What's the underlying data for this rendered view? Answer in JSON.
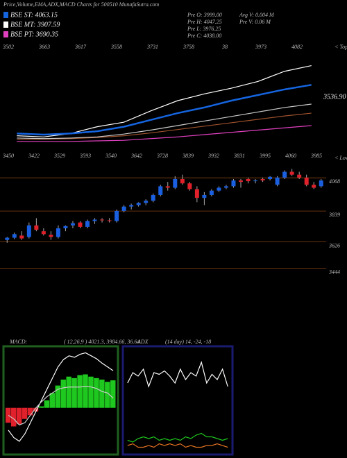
{
  "header": {
    "title": "Price,Volume,EMA,ADX,MACD Charts for 500510 MunafaSutra.com",
    "legend": [
      {
        "text": "BSE ST: 4063.15",
        "color": "#1565e0"
      },
      {
        "text": "BSE MT: 3907.59",
        "color": "#ffffff"
      },
      {
        "text": "BSE PT: 3690.35",
        "color": "#e040c0"
      }
    ],
    "info": [
      "Pre  O: 3999.00",
      "Pre  H: 4047.25",
      "Pre  L: 3976.25",
      "Pre  C: 4038.00",
      "Avg V: 0.004  M",
      "Pre  V: 0.06  M"
    ]
  },
  "chart_data": [
    {
      "type": "line",
      "top_labels": [
        "3502",
        "3663",
        "3617",
        "3558",
        "3731",
        "3758",
        "38",
        "3973",
        "4082"
      ],
      "low_labels": [
        "3450",
        "3422",
        "3529",
        "3593",
        "3540",
        "3642",
        "3728",
        "3839",
        "3932",
        "3831",
        "3995",
        "4060",
        "3985"
      ],
      "tops_label": "< Tops",
      "lows_label": "< Lows",
      "annotation": "3536.90",
      "categories": [
        null,
        null,
        null,
        null,
        null,
        null,
        null,
        null,
        null,
        null,
        null,
        null
      ],
      "ylim": [
        3300,
        4300
      ],
      "series": [
        {
          "color": "#ffffff",
          "values": [
            3480,
            3470,
            3500,
            3560,
            3600,
            3700,
            3790,
            3850,
            3900,
            3960,
            4050,
            4100
          ]
        },
        {
          "color": "#a0522d",
          "values": [
            3450,
            3450,
            3455,
            3465,
            3480,
            3505,
            3535,
            3565,
            3595,
            3625,
            3655,
            3680
          ]
        },
        {
          "color": "#e040c0",
          "values": [
            3430,
            3430,
            3430,
            3435,
            3440,
            3455,
            3470,
            3490,
            3510,
            3530,
            3550,
            3570
          ]
        },
        {
          "color": "#cccccc",
          "values": [
            3460,
            3455,
            3460,
            3470,
            3495,
            3530,
            3570,
            3610,
            3650,
            3690,
            3730,
            3760
          ]
        },
        {
          "color": "#1565e0",
          "values": [
            3500,
            3490,
            3500,
            3520,
            3560,
            3620,
            3680,
            3730,
            3790,
            3840,
            3890,
            3930
          ]
        }
      ]
    },
    {
      "type": "candlestick",
      "up_color": "#1a5fe0",
      "down_color": "#e0202a",
      "grid_color": "#8b4513",
      "ylim": [
        3380,
        4170
      ],
      "yticks": [
        4068,
        3839,
        3626,
        3444
      ],
      "open": [
        3640,
        3655,
        3670,
        3660,
        3740,
        3700,
        3675,
        3660,
        3720,
        3740,
        3760,
        3730,
        3770,
        3780,
        3775,
        3770,
        3840,
        3870,
        3880,
        3895,
        3910,
        3950,
        4010,
        4000,
        4060,
        4030,
        3990,
        3930,
        3950,
        3980,
        4000,
        4010,
        4050,
        4060,
        4045,
        4060,
        4060,
        4020,
        4070,
        4110,
        4090,
        4070,
        4020,
        4010
      ],
      "high": [
        3660,
        3690,
        3700,
        3760,
        3790,
        3720,
        3700,
        3740,
        3740,
        3770,
        3770,
        3780,
        3790,
        3790,
        3790,
        3850,
        3880,
        3890,
        3900,
        3920,
        3960,
        4020,
        4040,
        4080,
        4090,
        4040,
        4010,
        3970,
        3990,
        4010,
        4020,
        4060,
        4060,
        4070,
        4060,
        4070,
        4080,
        4080,
        4120,
        4130,
        4110,
        4090,
        4040,
        4060
      ],
      "low": [
        3620,
        3645,
        3640,
        3650,
        3700,
        3670,
        3640,
        3650,
        3700,
        3720,
        3720,
        3720,
        3750,
        3760,
        3760,
        3760,
        3830,
        3850,
        3870,
        3880,
        3900,
        3940,
        3980,
        3990,
        4020,
        3980,
        3900,
        3880,
        3940,
        3970,
        3990,
        4000,
        4000,
        4030,
        4030,
        4040,
        4050,
        4010,
        4060,
        4080,
        4060,
        4010,
        3990,
        4000
      ],
      "close": [
        3655,
        3680,
        3650,
        3740,
        3710,
        3680,
        3660,
        3720,
        3735,
        3755,
        3730,
        3770,
        3780,
        3775,
        3770,
        3840,
        3870,
        3880,
        3895,
        3910,
        3950,
        4010,
        4000,
        4060,
        4030,
        3990,
        3930,
        3950,
        3980,
        4000,
        4010,
        4050,
        4040,
        4045,
        4050,
        4050,
        4075,
        4070,
        4110,
        4090,
        4070,
        4020,
        4000,
        4050
      ]
    },
    {
      "type": "macd",
      "label": "MACD:",
      "params": "( 12,26,9 ) 4021.3, 3984.66, 36.64",
      "color": "#1f5f1f",
      "bar_up": "#1ec81e",
      "bar_down": "#e0202a",
      "categories": [
        null,
        null,
        null,
        null,
        null,
        null,
        null,
        null,
        null,
        null,
        null,
        null,
        null,
        null,
        null,
        null,
        null,
        null,
        null,
        null
      ],
      "ylim": [
        -60,
        80
      ],
      "histogram": [
        -20,
        -25,
        -22,
        -15,
        -10,
        -5,
        2,
        10,
        20,
        30,
        38,
        42,
        40,
        44,
        45,
        42,
        40,
        38,
        35,
        37
      ],
      "series": [
        {
          "color": "#ffffff",
          "values": [
            -30,
            -40,
            -45,
            -35,
            -20,
            -5,
            10,
            25,
            40,
            55,
            65,
            70,
            68,
            72,
            74,
            70,
            66,
            60,
            55,
            50
          ]
        },
        {
          "color": "#cccccc",
          "values": [
            -10,
            -15,
            -23,
            -20,
            -10,
            0,
            8,
            15,
            20,
            25,
            27,
            28,
            28,
            28,
            29,
            28,
            26,
            22,
            20,
            13
          ]
        }
      ]
    },
    {
      "type": "adx",
      "label": "ADX",
      "params": "(14 day) 14, -24, -18",
      "color": "#1a1a70",
      "categories": [
        null,
        null,
        null,
        null,
        null,
        null,
        null,
        null,
        null,
        null,
        null,
        null,
        null,
        null,
        null,
        null,
        null,
        null,
        null,
        null
      ],
      "ylim": [
        0,
        60
      ],
      "series": [
        {
          "color": "#ffffff",
          "values": [
            40,
            46,
            44,
            48,
            38,
            46,
            45,
            47,
            44,
            40,
            48,
            42,
            46,
            44,
            52,
            40,
            45,
            42,
            48,
            38
          ]
        },
        {
          "color": "#1ec81e",
          "values": [
            7,
            6,
            8,
            9,
            8,
            9,
            7,
            8,
            7,
            8,
            7,
            9,
            8,
            10,
            11,
            9,
            9,
            8,
            7,
            8
          ]
        },
        {
          "color": "#e07020",
          "values": [
            4,
            5,
            3,
            3,
            4,
            3,
            5,
            4,
            5,
            4,
            5,
            3,
            4,
            3,
            3,
            4,
            4,
            5,
            4,
            3
          ]
        }
      ]
    }
  ]
}
